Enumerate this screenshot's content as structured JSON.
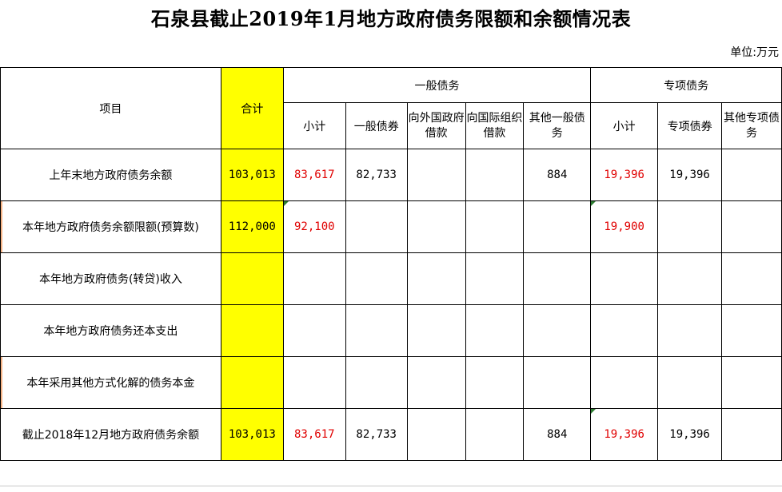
{
  "title": "石泉县截止2019年1月地方政府债务限额和余额情况表",
  "unit": "单位:万元",
  "headers": {
    "item": "项目",
    "total": "合计",
    "general_group": "一般债务",
    "special_group": "专项债务",
    "general_subtotal": "小计",
    "general_bonds": "一般债券",
    "foreign_gov_loans": "向外国政府借款",
    "intl_org_loans": "向国际组织借款",
    "other_general": "其他一般债务",
    "special_subtotal": "小计",
    "special_bonds": "专项债券",
    "other_special": "其他专项债务"
  },
  "rows": [
    {
      "label": "上年末地方政府债务余额",
      "total": "103,013",
      "g_sub": "83,617",
      "g_bonds": "82,733",
      "g_foreign": "",
      "g_intl": "",
      "g_other": "884",
      "s_sub": "19,396",
      "s_bonds": "19,396",
      "s_other": ""
    },
    {
      "label": "本年地方政府债务余额限额(预算数)",
      "total": "112,000",
      "g_sub": "92,100",
      "g_bonds": "",
      "g_foreign": "",
      "g_intl": "",
      "g_other": "",
      "s_sub": "19,900",
      "s_bonds": "",
      "s_other": ""
    },
    {
      "label": "本年地方政府债务(转贷)收入",
      "total": "",
      "g_sub": "",
      "g_bonds": "",
      "g_foreign": "",
      "g_intl": "",
      "g_other": "",
      "s_sub": "",
      "s_bonds": "",
      "s_other": ""
    },
    {
      "label": "本年地方政府债务还本支出",
      "total": "",
      "g_sub": "",
      "g_bonds": "",
      "g_foreign": "",
      "g_intl": "",
      "g_other": "",
      "s_sub": "",
      "s_bonds": "",
      "s_other": ""
    },
    {
      "label": "本年采用其他方式化解的债务本金",
      "total": "",
      "g_sub": "",
      "g_bonds": "",
      "g_foreign": "",
      "g_intl": "",
      "g_other": "",
      "s_sub": "",
      "s_bonds": "",
      "s_other": ""
    },
    {
      "label": "截止2018年12月地方政府债务余额",
      "total": "103,013",
      "g_sub": "83,617",
      "g_bonds": "82,733",
      "g_foreign": "",
      "g_intl": "",
      "g_other": "884",
      "s_sub": "19,396",
      "s_bonds": "19,396",
      "s_other": ""
    }
  ],
  "colors": {
    "highlight": "#ffff00",
    "red_text": "#e00000",
    "grid": "#000000"
  }
}
